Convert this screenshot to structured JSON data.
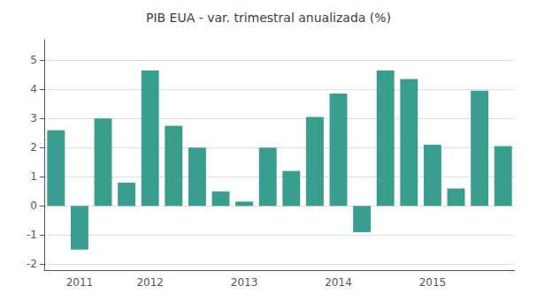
{
  "chart_data": {
    "type": "bar",
    "title": "PIB EUA - var. trimestral anualizada (%)",
    "categories": [
      null,
      "2011",
      null,
      null,
      "2012",
      null,
      null,
      null,
      "2013",
      null,
      null,
      null,
      "2014",
      null,
      null,
      null,
      "2015",
      null,
      null,
      null
    ],
    "values": [
      2.6,
      -1.5,
      3.0,
      0.8,
      4.65,
      2.75,
      2.0,
      0.5,
      0.15,
      2.0,
      1.2,
      3.05,
      3.85,
      -0.9,
      4.65,
      4.35,
      2.1,
      0.6,
      3.95,
      2.05
    ],
    "color": "#3a9e8f",
    "ylim": [
      -2.2,
      5.7
    ],
    "yticks": [
      -2,
      -1,
      0,
      1,
      2,
      3,
      4,
      5
    ],
    "grid": true
  }
}
